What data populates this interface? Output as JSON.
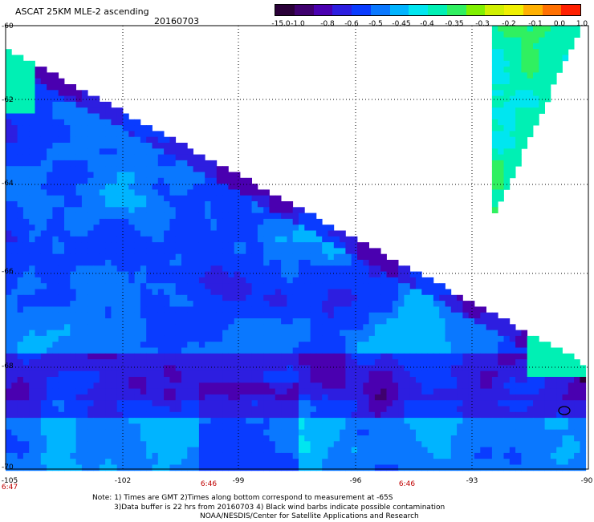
{
  "header": {
    "title": "ASCAT 25KM MLE-2 ascending",
    "date": "20160703"
  },
  "colorbar": {
    "labels": [
      "-15.0",
      "-1.0",
      "-0.8",
      "-0.6",
      "-0.5",
      "-0.45",
      "-0.4",
      "-0.35",
      "-0.3",
      "-0.2",
      "-0.1",
      "0.0",
      "1.0"
    ],
    "colors": [
      "#2a0038",
      "#3f006e",
      "#4a00b0",
      "#2d1ee0",
      "#0a3cff",
      "#0a78ff",
      "#00b4ff",
      "#00e6f0",
      "#00f0b4",
      "#30f060",
      "#80f000",
      "#d0f000",
      "#f0f000",
      "#ffb000",
      "#ff7000",
      "#ff2000"
    ]
  },
  "chart_data": {
    "type": "heatmap",
    "title": "ASCAT 25KM MLE-2 ascending",
    "date": "20160703",
    "x_ticks": [
      "-105",
      "-102",
      "-99",
      "-96",
      "-93",
      "-90"
    ],
    "y_ticks": [
      "-60",
      "-62",
      "-64",
      "-66",
      "-68",
      "-70"
    ],
    "xlim": [
      -105,
      -90
    ],
    "ylim": [
      -70,
      -60
    ],
    "time_labels": [
      {
        "lon": -105,
        "text": "6:47"
      },
      {
        "lon": -99,
        "text": "6:46"
      },
      {
        "lon": -96,
        "text": "6:46"
      }
    ],
    "grid": true,
    "colorbar_position": "top-right"
  },
  "notes": {
    "line1": "Note: 1) Times are GMT 2)Times along bottom correspond to measurement at -65S",
    "line2": "3)Data buffer is 22 hrs from 20160703 4) Black wind barbs indicate possible contamination",
    "line3": "NOAA/NESDIS/Center for Satellite Applications and Research"
  }
}
